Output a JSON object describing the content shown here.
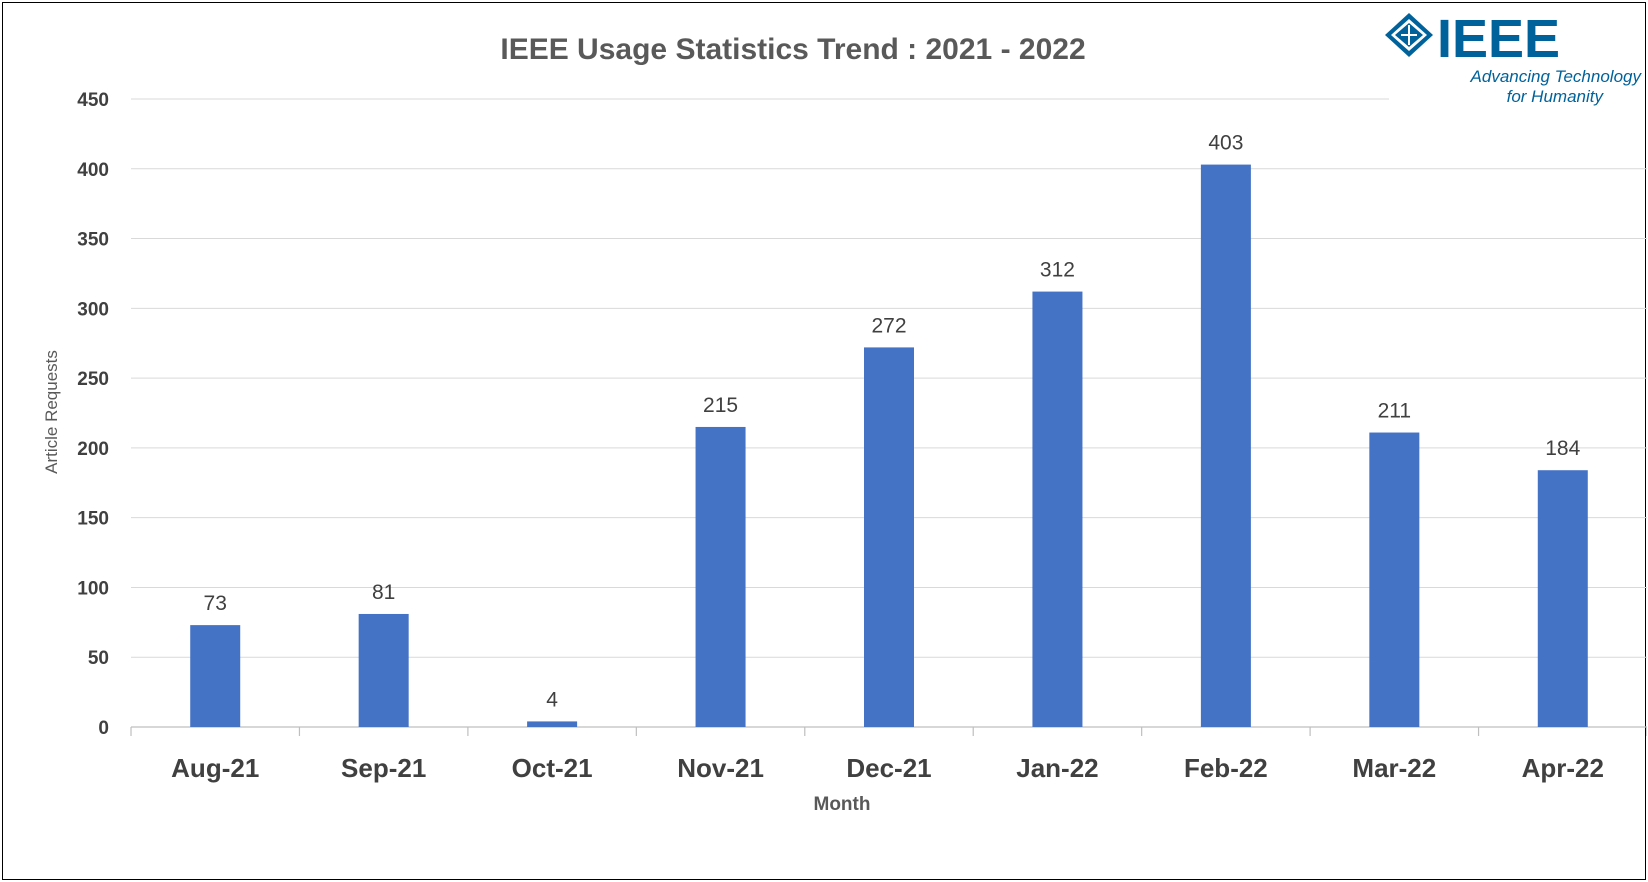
{
  "chart_data": {
    "type": "bar",
    "title": "IEEE Usage Statistics Trend : 2021 - 2022",
    "xlabel": "Month",
    "ylabel": "Article Requests",
    "categories": [
      "Aug-21",
      "Sep-21",
      "Oct-21",
      "Nov-21",
      "Dec-21",
      "Jan-22",
      "Feb-22",
      "Mar-22",
      "Apr-22"
    ],
    "values": [
      73,
      81,
      4,
      215,
      272,
      312,
      403,
      211,
      184
    ],
    "ylim": [
      0,
      450
    ],
    "yticks": [
      0,
      50,
      100,
      150,
      200,
      250,
      300,
      350,
      400,
      450
    ],
    "grid": true,
    "data_labels": true,
    "bar_color": "#4472c4"
  },
  "logo": {
    "wordmark": "IEEE",
    "tagline_line1": "Advancing Technology",
    "tagline_line2": "for Humanity",
    "color": "#00629b"
  }
}
